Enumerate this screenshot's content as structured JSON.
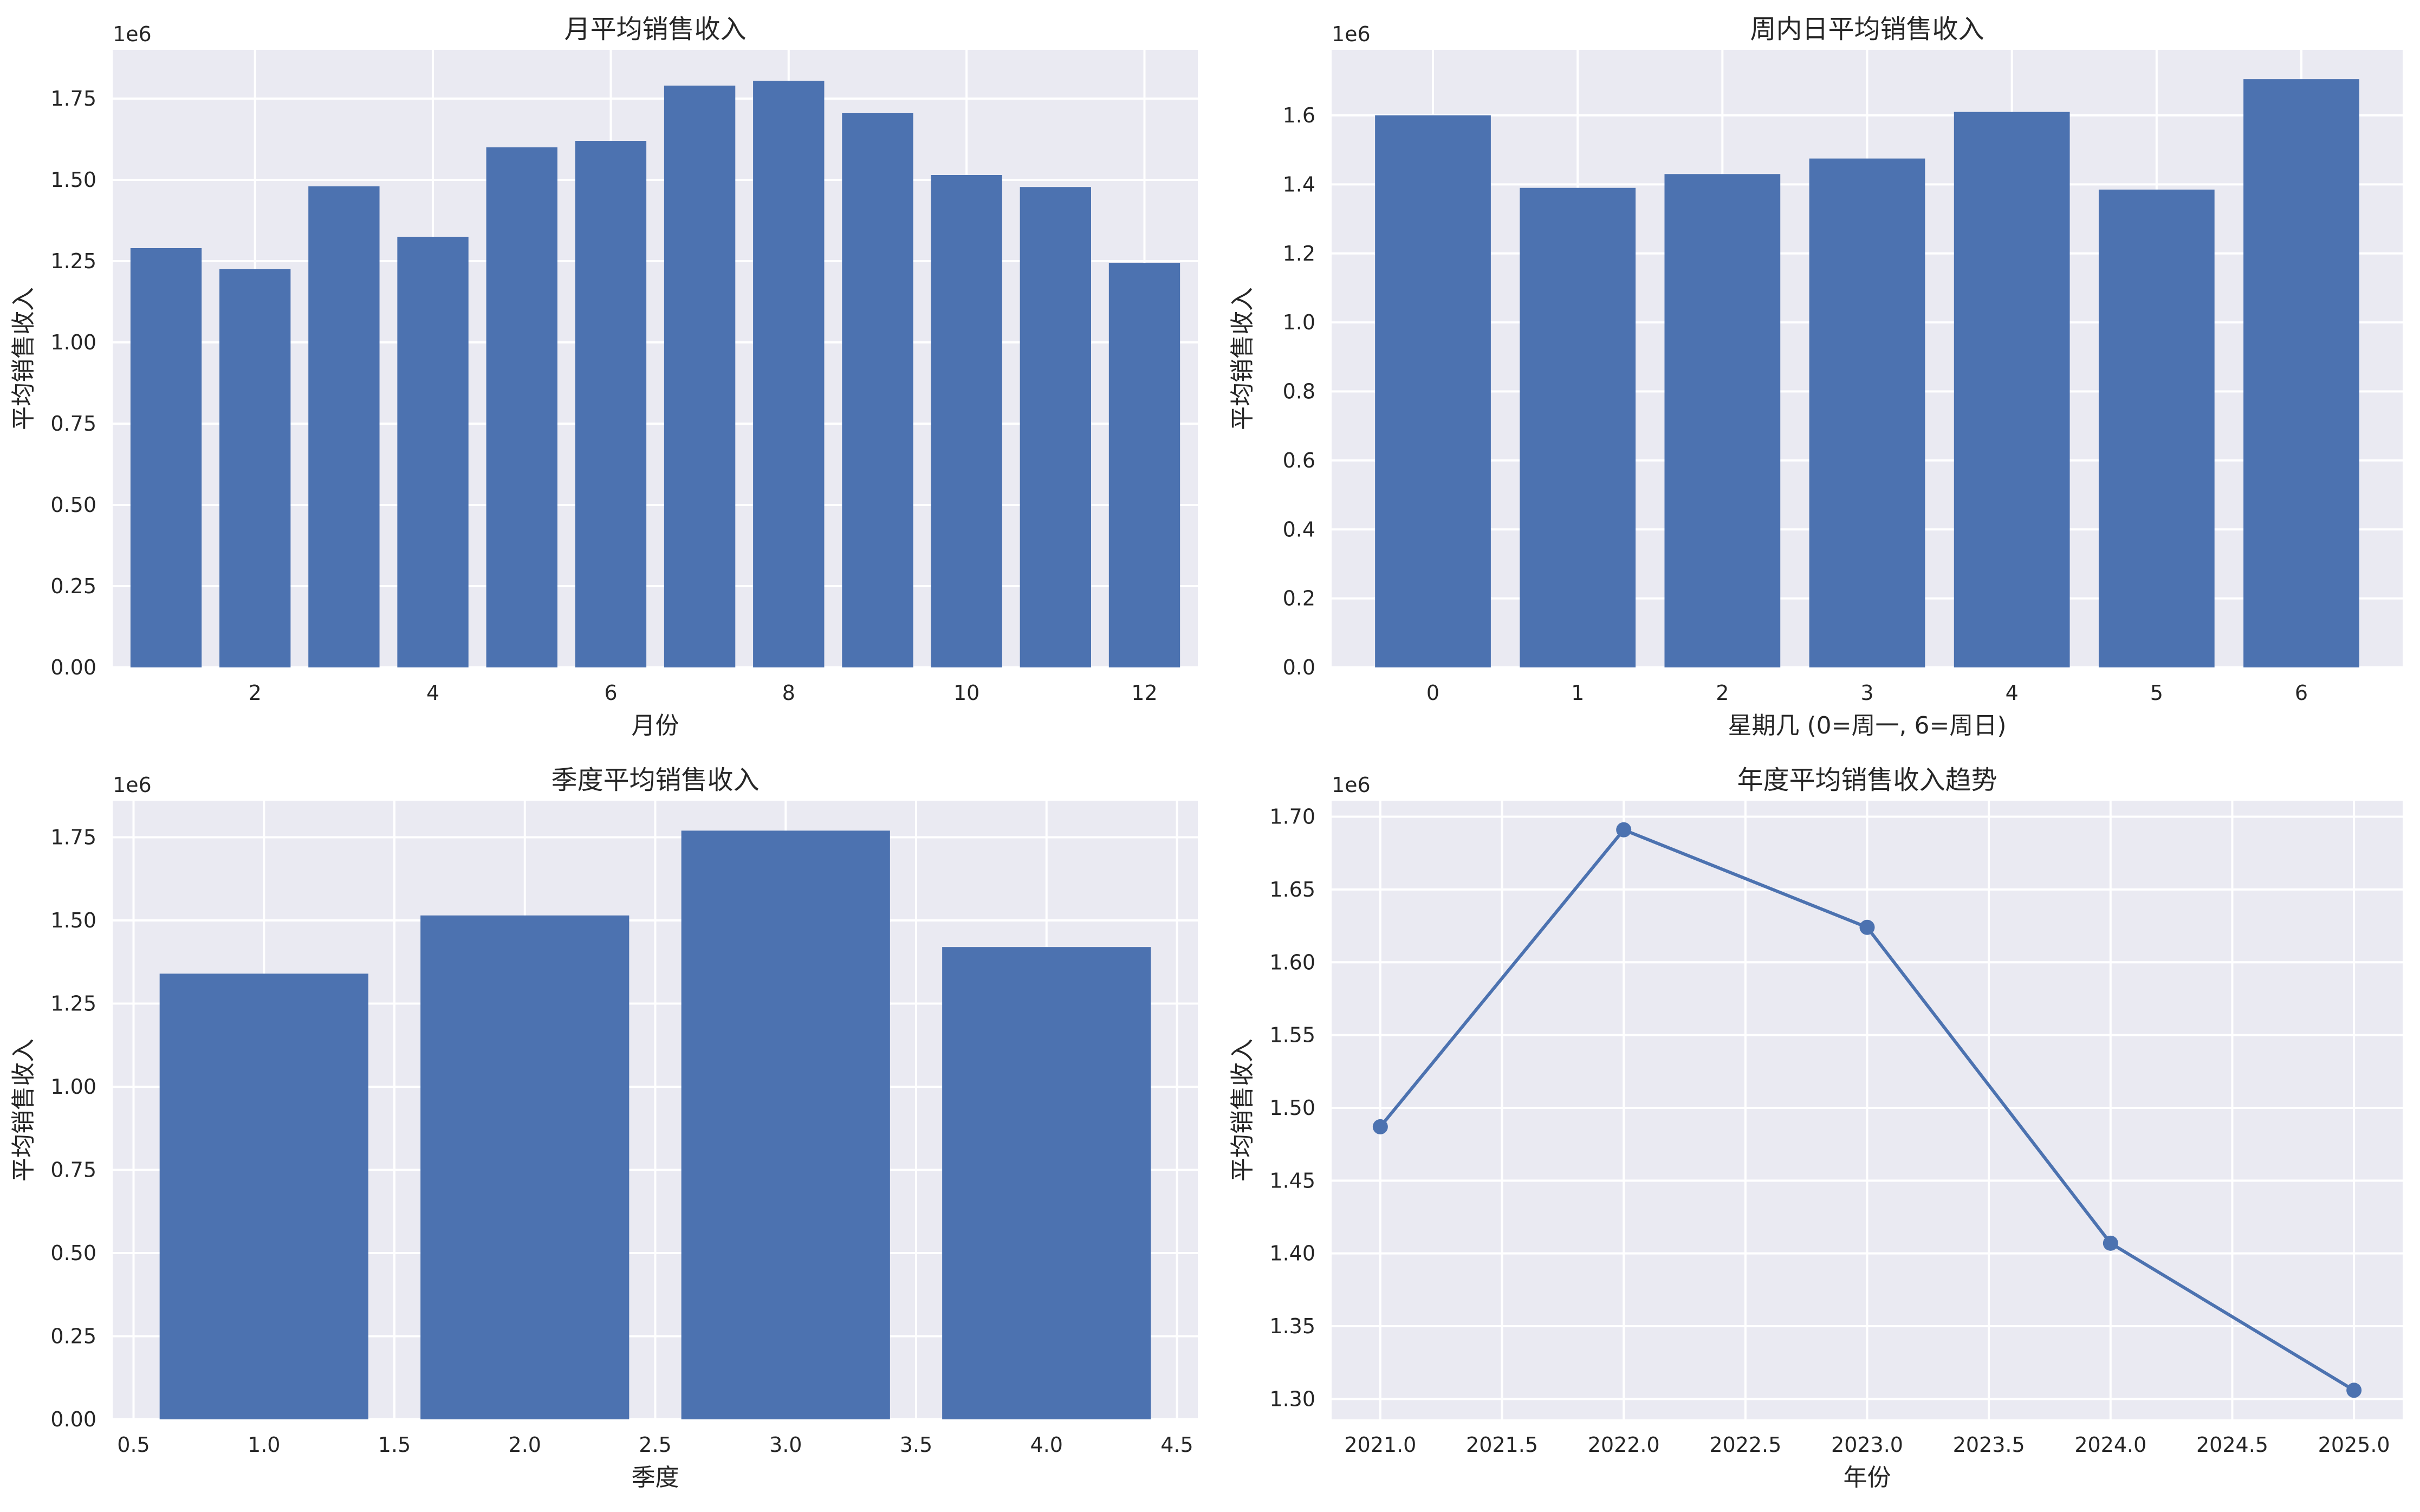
{
  "colors": {
    "panel_bg": "#eaeaf2",
    "grid": "#ffffff",
    "bar": "#4c72b0",
    "line": "#4c72b0",
    "text": "#262626"
  },
  "chart_data": [
    {
      "type": "bar",
      "title": "月平均销售收入",
      "xlabel": "月份",
      "ylabel": "平均销售收入",
      "y_offset_label": "1e6",
      "x": [
        1,
        2,
        3,
        4,
        5,
        6,
        7,
        8,
        9,
        10,
        11,
        12
      ],
      "values": [
        1.29,
        1.225,
        1.48,
        1.325,
        1.6,
        1.62,
        1.79,
        1.805,
        1.705,
        1.515,
        1.478,
        1.245
      ],
      "xlim": [
        0.4,
        12.6
      ],
      "ylim": [
        0,
        1.9
      ],
      "xticks": [
        2,
        4,
        6,
        8,
        10,
        12
      ],
      "yticks": [
        0.0,
        0.25,
        0.5,
        0.75,
        1.0,
        1.25,
        1.5,
        1.75
      ],
      "ytick_labels": [
        "0.00",
        "0.25",
        "0.50",
        "0.75",
        "1.00",
        "1.25",
        "1.50",
        "1.75"
      ],
      "grid": true
    },
    {
      "type": "bar",
      "title": "周内日平均销售收入",
      "xlabel": "星期几 (0=周一, 6=周日)",
      "ylabel": "平均销售收入",
      "y_offset_label": "1e6",
      "x": [
        0,
        1,
        2,
        3,
        4,
        5,
        6
      ],
      "values": [
        1.6,
        1.39,
        1.43,
        1.475,
        1.61,
        1.385,
        1.705
      ],
      "xlim": [
        -0.7,
        6.7
      ],
      "ylim": [
        0,
        1.79
      ],
      "xticks": [
        0,
        1,
        2,
        3,
        4,
        5,
        6
      ],
      "yticks": [
        0.0,
        0.2,
        0.4,
        0.6,
        0.8,
        1.0,
        1.2,
        1.4,
        1.6
      ],
      "ytick_labels": [
        "0.0",
        "0.2",
        "0.4",
        "0.6",
        "0.8",
        "1.0",
        "1.2",
        "1.4",
        "1.6"
      ],
      "grid": true
    },
    {
      "type": "bar",
      "title": "季度平均销售收入",
      "xlabel": "季度",
      "ylabel": "平均销售收入",
      "y_offset_label": "1e6",
      "x": [
        1,
        2,
        3,
        4
      ],
      "values": [
        1.34,
        1.515,
        1.77,
        1.42
      ],
      "xlim": [
        0.42,
        4.58
      ],
      "ylim": [
        0,
        1.86
      ],
      "xticks": [
        0.5,
        1.0,
        1.5,
        2.0,
        2.5,
        3.0,
        3.5,
        4.0,
        4.5
      ],
      "xtick_labels": [
        "0.5",
        "1.0",
        "1.5",
        "2.0",
        "2.5",
        "3.0",
        "3.5",
        "4.0",
        "4.5"
      ],
      "yticks": [
        0.0,
        0.25,
        0.5,
        0.75,
        1.0,
        1.25,
        1.5,
        1.75
      ],
      "ytick_labels": [
        "0.00",
        "0.25",
        "0.50",
        "0.75",
        "1.00",
        "1.25",
        "1.50",
        "1.75"
      ],
      "grid": true
    },
    {
      "type": "line",
      "title": "年度平均销售收入趋势",
      "xlabel": "年份",
      "ylabel": "平均销售收入",
      "y_offset_label": "1e6",
      "x": [
        2021,
        2022,
        2023,
        2024,
        2025
      ],
      "values": [
        1.487,
        1.691,
        1.624,
        1.407,
        1.306
      ],
      "xlim": [
        2020.8,
        2025.2
      ],
      "ylim": [
        1.286,
        1.711
      ],
      "xticks": [
        2021.0,
        2021.5,
        2022.0,
        2022.5,
        2023.0,
        2023.5,
        2024.0,
        2024.5,
        2025.0
      ],
      "xtick_labels": [
        "2021.0",
        "2021.5",
        "2022.0",
        "2022.5",
        "2023.0",
        "2023.5",
        "2024.0",
        "2024.5",
        "2025.0"
      ],
      "yticks": [
        1.3,
        1.35,
        1.4,
        1.45,
        1.5,
        1.55,
        1.6,
        1.65,
        1.7
      ],
      "ytick_labels": [
        "1.30",
        "1.35",
        "1.40",
        "1.45",
        "1.50",
        "1.55",
        "1.60",
        "1.65",
        "1.70"
      ],
      "markers": true,
      "grid": true
    }
  ]
}
